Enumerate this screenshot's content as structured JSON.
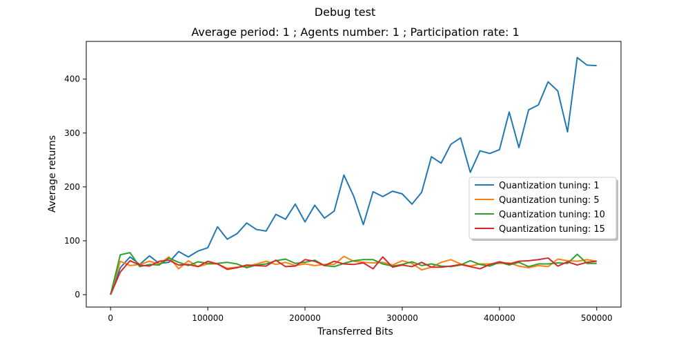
{
  "chart_data": {
    "type": "line",
    "suptitle": "Debug test",
    "title": "Average period: 1 ; Agents number: 1 ; Participation rate: 1",
    "xlabel": "Transferred Bits",
    "ylabel": "Average returns",
    "xlim": [
      -25000,
      525000
    ],
    "ylim": [
      -23,
      470
    ],
    "xticks": [
      0,
      100000,
      200000,
      300000,
      400000,
      500000
    ],
    "yticks": [
      0,
      100,
      200,
      300,
      400
    ],
    "grid": false,
    "legend_position": "center-right",
    "x": [
      0,
      10000,
      20000,
      30000,
      40000,
      50000,
      60000,
      70000,
      80000,
      90000,
      100000,
      110000,
      120000,
      130000,
      140000,
      150000,
      160000,
      170000,
      180000,
      190000,
      200000,
      210000,
      220000,
      230000,
      240000,
      250000,
      260000,
      270000,
      280000,
      290000,
      300000,
      310000,
      320000,
      330000,
      340000,
      350000,
      360000,
      370000,
      380000,
      390000,
      400000,
      410000,
      420000,
      430000,
      440000,
      450000,
      460000,
      470000,
      480000,
      490000,
      500000
    ],
    "series": [
      {
        "name": "Quantization tuning: 1",
        "color": "#1f77b4",
        "values": [
          0,
          50,
          70,
          56,
          72,
          58,
          60,
          80,
          70,
          81,
          87,
          126,
          103,
          113,
          133,
          121,
          118,
          149,
          140,
          168,
          135,
          166,
          142,
          155,
          222,
          183,
          130,
          191,
          182,
          192,
          187,
          168,
          190,
          256,
          244,
          279,
          291,
          227,
          267,
          262,
          269,
          339,
          273,
          343,
          352,
          395,
          378,
          302,
          440,
          426,
          425
        ]
      },
      {
        "name": "Quantization tuning: 5",
        "color": "#ff7f0e",
        "values": [
          0,
          62,
          54,
          56,
          62,
          57,
          70,
          48,
          63,
          52,
          57,
          57,
          49,
          51,
          52,
          57,
          62,
          56,
          60,
          54,
          57,
          54,
          56,
          56,
          71,
          62,
          60,
          59,
          60,
          55,
          63,
          58,
          46,
          51,
          60,
          65,
          57,
          53,
          57,
          57,
          58,
          59,
          53,
          50,
          54,
          52,
          66,
          63,
          62,
          65,
          62
        ]
      },
      {
        "name": "Quantization tuning: 10",
        "color": "#2ca02c",
        "values": [
          0,
          74,
          78,
          52,
          56,
          55,
          68,
          60,
          54,
          61,
          58,
          58,
          60,
          57,
          50,
          55,
          57,
          63,
          66,
          58,
          60,
          64,
          54,
          52,
          58,
          63,
          65,
          65,
          57,
          53,
          56,
          61,
          54,
          57,
          53,
          52,
          55,
          63,
          56,
          53,
          60,
          55,
          60,
          52,
          57,
          57,
          59,
          58,
          75,
          58,
          58
        ]
      },
      {
        "name": "Quantization tuning: 15",
        "color": "#d62728",
        "values": [
          0,
          42,
          63,
          55,
          53,
          62,
          64,
          55,
          56,
          52,
          62,
          57,
          47,
          50,
          55,
          54,
          53,
          64,
          52,
          53,
          65,
          62,
          54,
          62,
          57,
          56,
          59,
          48,
          70,
          51,
          55,
          52,
          60,
          51,
          51,
          53,
          56,
          52,
          48,
          56,
          61,
          57,
          62,
          63,
          65,
          68,
          53,
          61,
          55,
          60,
          62
        ]
      }
    ]
  }
}
